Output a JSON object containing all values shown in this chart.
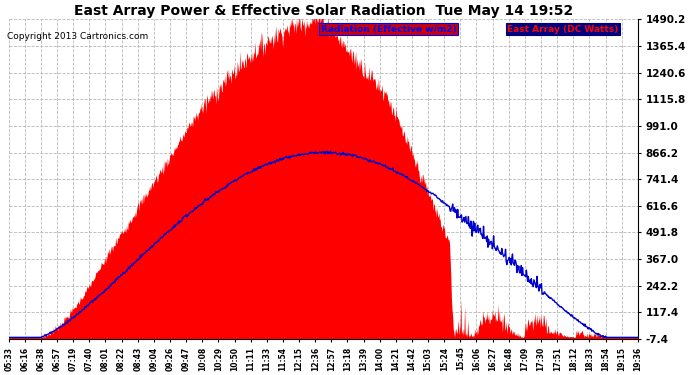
{
  "title": "East Array Power & Effective Solar Radiation  Tue May 14 19:52",
  "copyright": "Copyright 2013 Cartronics.com",
  "ylabel_right_values": [
    1490.2,
    1365.4,
    1240.6,
    1115.8,
    991.0,
    866.2,
    741.4,
    616.6,
    491.8,
    367.0,
    242.2,
    117.4,
    -7.4
  ],
  "ymin": -7.4,
  "ymax": 1490.2,
  "fill_color": "#ff0000",
  "line_color": "#0000cc",
  "background_color": "#ffffff",
  "grid_color": "#b0b0b0",
  "xtick_labels": [
    "05:33",
    "06:16",
    "06:38",
    "06:57",
    "07:19",
    "07:40",
    "08:01",
    "08:22",
    "08:43",
    "09:04",
    "09:26",
    "09:47",
    "10:08",
    "10:29",
    "10:50",
    "11:11",
    "11:33",
    "11:54",
    "12:15",
    "12:36",
    "12:57",
    "13:18",
    "13:39",
    "14:00",
    "14:21",
    "14:42",
    "15:03",
    "15:24",
    "15:45",
    "16:06",
    "16:27",
    "16:48",
    "17:09",
    "17:30",
    "17:51",
    "18:12",
    "18:33",
    "18:54",
    "19:15",
    "19:36"
  ],
  "legend_rad_label": "Radiation (Effective w/m2)",
  "legend_east_label": "East Array (DC Watts)",
  "legend_rad_bg": "#0000cc",
  "legend_rad_text": "#0000cc",
  "legend_east_bg": "#cc0000",
  "legend_east_text": "#cc0000"
}
